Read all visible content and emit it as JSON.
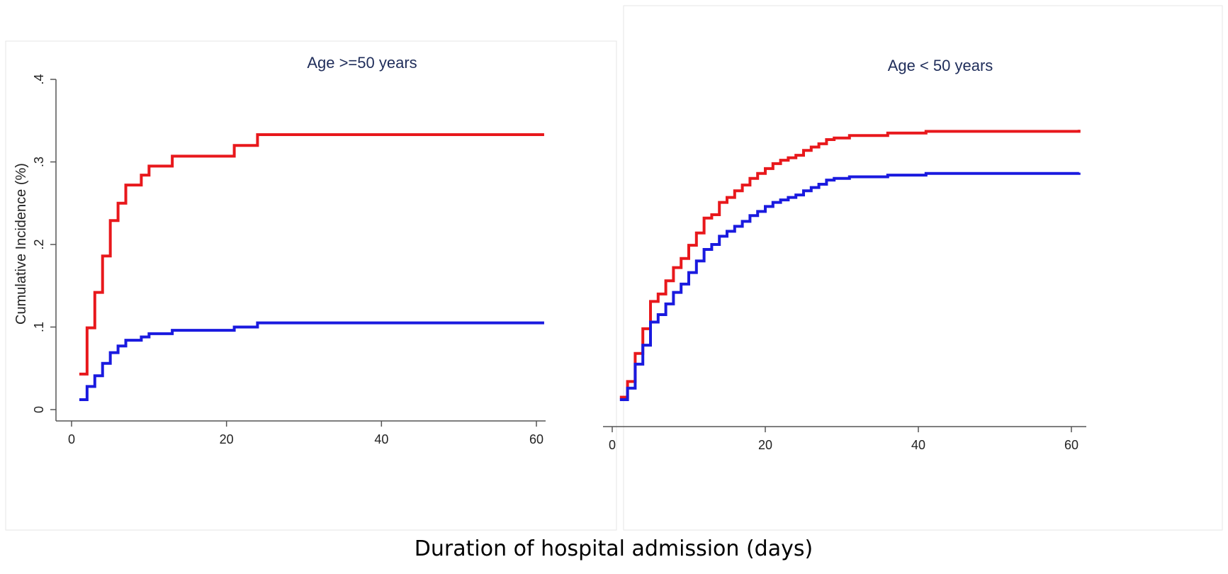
{
  "chart_data": [
    {
      "type": "line",
      "step": true,
      "title": "Age >=50 years",
      "ylabel": "Cumulative Incidence (%)",
      "xlim": [
        0,
        61
      ],
      "ylim": [
        0,
        0.4
      ],
      "xticks": [
        0,
        20,
        40,
        60
      ],
      "xtick_labels": [
        "0",
        "20",
        "40",
        "60"
      ],
      "yticks": [
        0,
        0.1,
        0.2,
        0.3,
        0.4
      ],
      "ytick_labels": [
        "0",
        ".1",
        ".2",
        ".3",
        ".4"
      ],
      "series": [
        {
          "color": "#e8181c",
          "x": [
            1,
            2,
            3,
            4,
            5,
            6,
            7,
            9,
            10,
            13,
            21,
            24,
            61
          ],
          "y": [
            0.043,
            0.099,
            0.142,
            0.186,
            0.229,
            0.25,
            0.272,
            0.284,
            0.295,
            0.307,
            0.32,
            0.333,
            0.333
          ]
        },
        {
          "color": "#1a1adf",
          "x": [
            1,
            2,
            3,
            4,
            5,
            6,
            7,
            9,
            10,
            13,
            21,
            24,
            61
          ],
          "y": [
            0.012,
            0.028,
            0.041,
            0.056,
            0.069,
            0.077,
            0.084,
            0.088,
            0.092,
            0.096,
            0.1,
            0.105,
            0.105
          ]
        }
      ]
    },
    {
      "type": "line",
      "step": true,
      "title": "Age < 50 years",
      "xlim": [
        0,
        61
      ],
      "ylim": [
        0,
        0.4
      ],
      "xticks": [
        0,
        20,
        40,
        60
      ],
      "xtick_labels": [
        "0",
        "20",
        "40",
        "60"
      ],
      "series": [
        {
          "color": "#e8181c",
          "x": [
            1,
            2,
            3,
            4,
            5,
            6,
            7,
            8,
            9,
            10,
            11,
            12,
            13,
            14,
            15,
            16,
            17,
            18,
            19,
            20,
            21,
            22,
            23,
            24,
            25,
            26,
            27,
            28,
            29,
            31,
            36,
            41,
            61
          ],
          "y": [
            0.015,
            0.034,
            0.068,
            0.098,
            0.131,
            0.14,
            0.156,
            0.172,
            0.183,
            0.199,
            0.214,
            0.232,
            0.236,
            0.251,
            0.257,
            0.265,
            0.272,
            0.28,
            0.286,
            0.292,
            0.298,
            0.302,
            0.305,
            0.308,
            0.314,
            0.318,
            0.322,
            0.327,
            0.329,
            0.332,
            0.335,
            0.337,
            0.339
          ]
        },
        {
          "color": "#1a1adf",
          "x": [
            1,
            2,
            3,
            4,
            5,
            6,
            7,
            8,
            9,
            10,
            11,
            12,
            13,
            14,
            15,
            16,
            17,
            18,
            19,
            20,
            21,
            22,
            23,
            24,
            25,
            26,
            27,
            28,
            29,
            31,
            36,
            41,
            61
          ],
          "y": [
            0.012,
            0.026,
            0.055,
            0.078,
            0.106,
            0.115,
            0.128,
            0.142,
            0.152,
            0.166,
            0.18,
            0.194,
            0.2,
            0.21,
            0.216,
            0.222,
            0.228,
            0.235,
            0.24,
            0.246,
            0.251,
            0.254,
            0.257,
            0.26,
            0.265,
            0.269,
            0.273,
            0.278,
            0.28,
            0.282,
            0.284,
            0.286,
            0.287
          ]
        }
      ]
    }
  ],
  "shared_xlabel": "Duration of hospital admission (days)"
}
